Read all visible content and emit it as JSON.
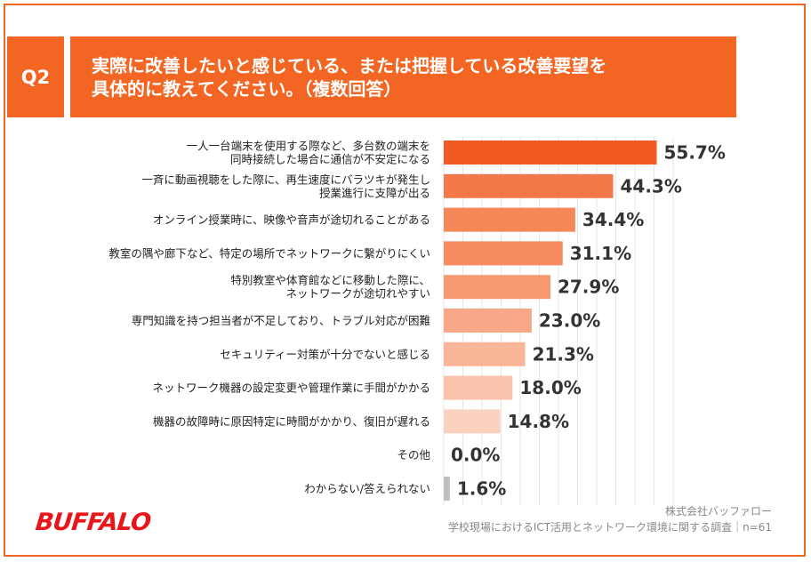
{
  "header": {
    "question_number": "Q2",
    "title_line1": "実際に改善したいと感じている、または把握している改善要望を",
    "title_line2": "具体的に教えてください。（複数回答）"
  },
  "colors": {
    "accent": "#f26522",
    "gray_bar": "#bfbfbf"
  },
  "chart_data": {
    "type": "bar",
    "orientation": "horizontal",
    "categories": [
      "一人一台端末を使用する際など、多台数の端末を\n同時接続した場合に通信が不安定になる",
      "一斉に動画視聴をした際に、再生速度にバラツキが発生し\n授業進行に支障が出る",
      "オンライン授業時に、映像や音声が途切れることがある",
      "教室の隅や廊下など、特定の場所でネットワークに繋がりにくい",
      "特別教室や体育館などに移動した際に、\nネットワークが途切れやすい",
      "専門知識を持つ担当者が不足しており、トラブル対応が困難",
      "セキュリティー対策が十分でないと感じる",
      "ネットワーク機器の設定変更や管理作業に手間がかかる",
      "機器の故障時に原因特定に時間がかかり、復旧が遅れる",
      "その他",
      "わからない/答えられない"
    ],
    "values": [
      55.7,
      44.3,
      34.4,
      31.1,
      27.9,
      23.0,
      21.3,
      18.0,
      14.8,
      0.0,
      1.6
    ],
    "value_labels": [
      "55.7%",
      "44.3%",
      "34.4%",
      "31.1%",
      "27.9%",
      "23.0%",
      "21.3%",
      "18.0%",
      "14.8%",
      "0.0%",
      "1.6%"
    ],
    "bar_colors": [
      "#f15a22",
      "#f3794a",
      "#f58758",
      "#f68c5f",
      "#f79a72",
      "#f8a886",
      "#f9b597",
      "#fac4ac",
      "#fbd2c0",
      "#fde2d6",
      "#bfbfbf"
    ],
    "xlim": [
      0,
      60
    ],
    "grid": true
  },
  "footer": {
    "company": "株式会社バッファロー",
    "survey": "学校現場におけるICT活用とネットワーク環境に関する調査｜n=61",
    "logo_text": "BUFFALO"
  }
}
